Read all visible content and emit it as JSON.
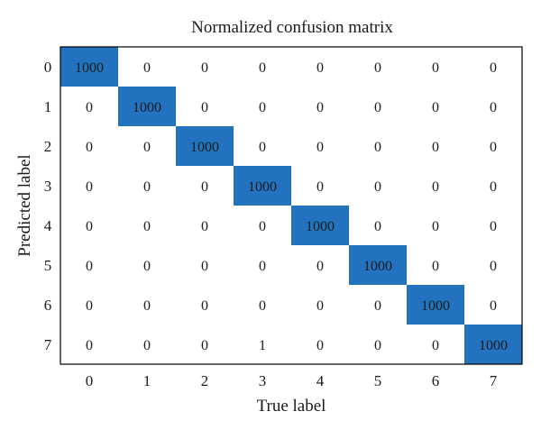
{
  "chart_data": {
    "type": "heatmap",
    "title": "Normalized confusion matrix",
    "xlabel": "True label",
    "ylabel": "Predicted label",
    "x_categories": [
      "0",
      "1",
      "2",
      "3",
      "4",
      "5",
      "6",
      "7"
    ],
    "y_categories": [
      "0",
      "1",
      "2",
      "3",
      "4",
      "5",
      "6",
      "7"
    ],
    "matrix": [
      [
        1000,
        0,
        0,
        0,
        0,
        0,
        0,
        0
      ],
      [
        0,
        1000,
        0,
        0,
        0,
        0,
        0,
        0
      ],
      [
        0,
        0,
        1000,
        0,
        0,
        0,
        0,
        0
      ],
      [
        0,
        0,
        0,
        1000,
        0,
        0,
        0,
        0
      ],
      [
        0,
        0,
        0,
        0,
        1000,
        0,
        0,
        0
      ],
      [
        0,
        0,
        0,
        0,
        0,
        1000,
        0,
        0
      ],
      [
        0,
        0,
        0,
        0,
        0,
        0,
        1000,
        0
      ],
      [
        0,
        0,
        0,
        1,
        0,
        0,
        0,
        1000
      ]
    ],
    "highlight_color": "#2272bf",
    "background_color": "#ffffff"
  }
}
